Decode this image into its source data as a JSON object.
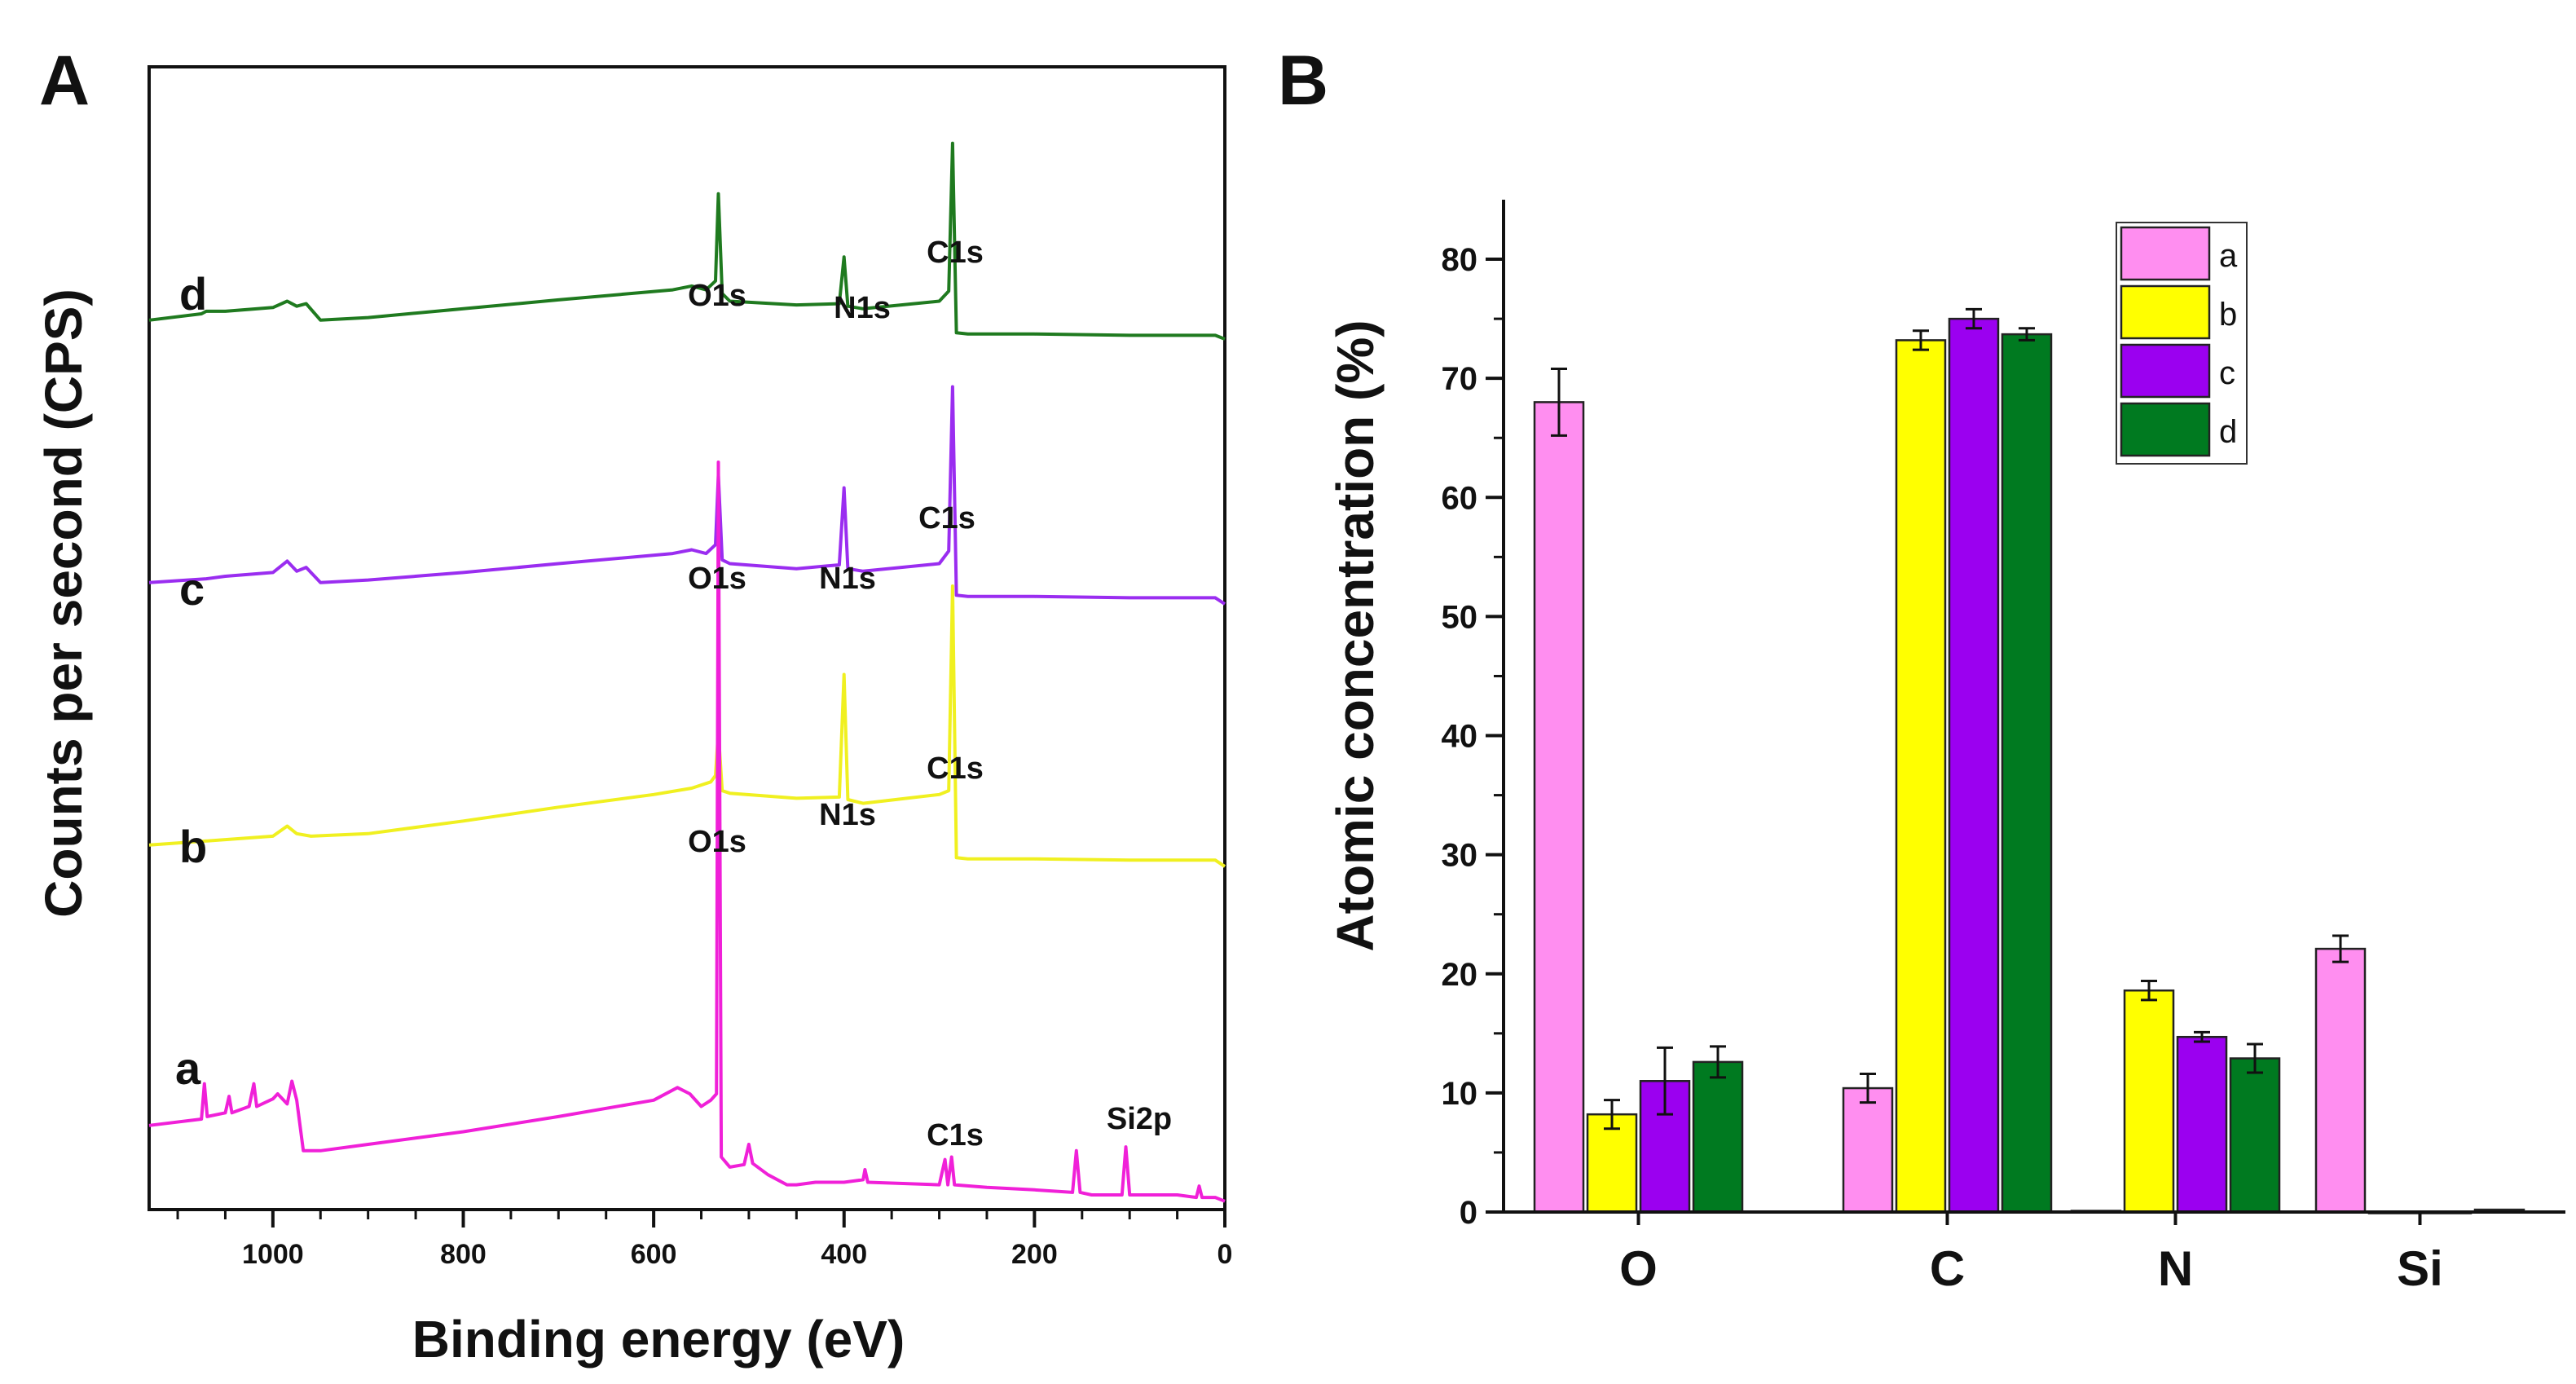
{
  "chart_data": [
    {
      "panel": "A",
      "type": "line",
      "xlabel": "Binding energy (eV)",
      "ylabel": "Counts per second (CPS)",
      "xlim": [
        1130,
        0
      ],
      "x_ticks": [
        1000,
        800,
        600,
        400,
        200,
        0
      ],
      "x_reversed": true,
      "y_ticks_shown": false,
      "series": [
        {
          "name": "d",
          "color": "#1f7a1f",
          "offset": 3,
          "points": [
            [
              1130,
              0.55
            ],
            [
              1075,
              0.6
            ],
            [
              1070,
              0.62
            ],
            [
              1050,
              0.62
            ],
            [
              1000,
              0.65
            ],
            [
              985,
              0.7
            ],
            [
              975,
              0.66
            ],
            [
              965,
              0.68
            ],
            [
              950,
              0.55
            ],
            [
              900,
              0.57
            ],
            [
              800,
              0.64
            ],
            [
              700,
              0.71
            ],
            [
              580,
              0.79
            ],
            [
              560,
              0.82
            ],
            [
              545,
              0.79
            ],
            [
              535,
              0.86
            ],
            [
              532,
              1.55
            ],
            [
              528,
              0.76
            ],
            [
              520,
              0.7
            ],
            [
              450,
              0.67
            ],
            [
              405,
              0.68
            ],
            [
              400,
              1.05
            ],
            [
              396,
              0.66
            ],
            [
              380,
              0.64
            ],
            [
              300,
              0.7
            ],
            [
              290,
              0.78
            ],
            [
              286,
              1.95
            ],
            [
              282,
              0.45
            ],
            [
              270,
              0.44
            ],
            [
              200,
              0.44
            ],
            [
              100,
              0.43
            ],
            [
              50,
              0.43
            ],
            [
              10,
              0.43
            ],
            [
              0,
              0.4
            ]
          ]
        },
        {
          "name": "c",
          "color": "#9a2df0",
          "offset": 2,
          "points": [
            [
              1130,
              0.55
            ],
            [
              1070,
              0.58
            ],
            [
              1050,
              0.6
            ],
            [
              1000,
              0.63
            ],
            [
              985,
              0.72
            ],
            [
              975,
              0.64
            ],
            [
              965,
              0.67
            ],
            [
              950,
              0.55
            ],
            [
              900,
              0.57
            ],
            [
              800,
              0.63
            ],
            [
              700,
              0.7
            ],
            [
              580,
              0.78
            ],
            [
              560,
              0.81
            ],
            [
              545,
              0.78
            ],
            [
              535,
              0.85
            ],
            [
              532,
              1.4
            ],
            [
              528,
              0.73
            ],
            [
              520,
              0.7
            ],
            [
              450,
              0.66
            ],
            [
              405,
              0.69
            ],
            [
              400,
              1.3
            ],
            [
              396,
              0.66
            ],
            [
              380,
              0.64
            ],
            [
              300,
              0.7
            ],
            [
              290,
              0.8
            ],
            [
              286,
              2.1
            ],
            [
              282,
              0.45
            ],
            [
              270,
              0.44
            ],
            [
              200,
              0.44
            ],
            [
              100,
              0.43
            ],
            [
              50,
              0.43
            ],
            [
              10,
              0.43
            ],
            [
              0,
              0.38
            ]
          ]
        },
        {
          "name": "b",
          "color": "#f0f020",
          "offset": 1,
          "points": [
            [
              1130,
              0.55
            ],
            [
              1000,
              0.62
            ],
            [
              985,
              0.7
            ],
            [
              975,
              0.64
            ],
            [
              960,
              0.62
            ],
            [
              900,
              0.64
            ],
            [
              800,
              0.74
            ],
            [
              700,
              0.85
            ],
            [
              600,
              0.95
            ],
            [
              560,
              1.0
            ],
            [
              540,
              1.05
            ],
            [
              535,
              1.1
            ],
            [
              532,
              1.45
            ],
            [
              528,
              0.98
            ],
            [
              520,
              0.96
            ],
            [
              450,
              0.92
            ],
            [
              405,
              0.93
            ],
            [
              400,
              1.9
            ],
            [
              396,
              0.91
            ],
            [
              380,
              0.88
            ],
            [
              300,
              0.95
            ],
            [
              290,
              0.98
            ],
            [
              286,
              2.6
            ],
            [
              282,
              0.45
            ],
            [
              270,
              0.44
            ],
            [
              200,
              0.44
            ],
            [
              100,
              0.43
            ],
            [
              50,
              0.43
            ],
            [
              10,
              0.43
            ],
            [
              0,
              0.38
            ]
          ]
        },
        {
          "name": "a",
          "color": "#f020d8",
          "offset": 0,
          "points": [
            [
              1130,
              0.15
            ],
            [
              1075,
              0.2
            ],
            [
              1072,
              0.48
            ],
            [
              1069,
              0.22
            ],
            [
              1050,
              0.25
            ],
            [
              1046,
              0.38
            ],
            [
              1043,
              0.25
            ],
            [
              1025,
              0.3
            ],
            [
              1020,
              0.48
            ],
            [
              1017,
              0.3
            ],
            [
              1000,
              0.36
            ],
            [
              995,
              0.4
            ],
            [
              985,
              0.32
            ],
            [
              980,
              0.5
            ],
            [
              975,
              0.35
            ],
            [
              968,
              -0.05
            ],
            [
              950,
              -0.05
            ],
            [
              900,
              0.0
            ],
            [
              800,
              0.1
            ],
            [
              700,
              0.22
            ],
            [
              600,
              0.35
            ],
            [
              575,
              0.45
            ],
            [
              562,
              0.4
            ],
            [
              550,
              0.3
            ],
            [
              540,
              0.35
            ],
            [
              534,
              0.4
            ],
            [
              532,
              5.4
            ],
            [
              529,
              -0.1
            ],
            [
              520,
              -0.18
            ],
            [
              505,
              -0.16
            ],
            [
              500,
              0.0
            ],
            [
              496,
              -0.15
            ],
            [
              480,
              -0.24
            ],
            [
              460,
              -0.32
            ],
            [
              450,
              -0.32
            ],
            [
              430,
              -0.3
            ],
            [
              400,
              -0.3
            ],
            [
              380,
              -0.28
            ],
            [
              378,
              -0.2
            ],
            [
              375,
              -0.3
            ],
            [
              300,
              -0.32
            ],
            [
              294,
              -0.12
            ],
            [
              291,
              -0.32
            ],
            [
              287,
              -0.1
            ],
            [
              284,
              -0.32
            ],
            [
              250,
              -0.34
            ],
            [
              200,
              -0.36
            ],
            [
              160,
              -0.38
            ],
            [
              156,
              -0.05
            ],
            [
              152,
              -0.38
            ],
            [
              140,
              -0.4
            ],
            [
              108,
              -0.4
            ],
            [
              104,
              -0.02
            ],
            [
              100,
              -0.4
            ],
            [
              50,
              -0.4
            ],
            [
              30,
              -0.42
            ],
            [
              27,
              -0.33
            ],
            [
              24,
              -0.42
            ],
            [
              10,
              -0.42
            ],
            [
              0,
              -0.45
            ]
          ]
        }
      ],
      "annotations": [
        {
          "text": "O1s",
          "curve": "d"
        },
        {
          "text": "N1s",
          "curve": "d"
        },
        {
          "text": "C1s",
          "curve": "d"
        },
        {
          "text": "O1s",
          "curve": "c"
        },
        {
          "text": "N1s",
          "curve": "c"
        },
        {
          "text": "C1s",
          "curve": "c"
        },
        {
          "text": "O1s",
          "curve": "b"
        },
        {
          "text": "N1s",
          "curve": "b"
        },
        {
          "text": "C1s",
          "curve": "b"
        },
        {
          "text": "C1s",
          "curve": "a"
        },
        {
          "text": "Si2p",
          "curve": "a"
        }
      ]
    },
    {
      "panel": "B",
      "type": "bar",
      "ylabel": "Atomic concentration (%)",
      "xlabel": "",
      "ylim": [
        0,
        85
      ],
      "y_ticks": [
        0,
        10,
        20,
        30,
        40,
        50,
        60,
        70,
        80
      ],
      "categories": [
        "O",
        "C",
        "N",
        "Si"
      ],
      "legend_position": "top-right",
      "series": [
        {
          "name": "a",
          "color": "#ff8ef0",
          "values": [
            68.0,
            10.4,
            0.1,
            22.1
          ],
          "errors": [
            2.8,
            1.2,
            0,
            1.1
          ]
        },
        {
          "name": "b",
          "color": "#ffff00",
          "values": [
            8.2,
            73.2,
            18.6,
            0.0
          ],
          "errors": [
            1.2,
            0.8,
            0.8,
            0
          ]
        },
        {
          "name": "c",
          "color": "#9b00f0",
          "values": [
            11.0,
            75.0,
            14.7,
            0.0
          ],
          "errors": [
            2.8,
            0.8,
            0.4,
            0
          ]
        },
        {
          "name": "d",
          "color": "#007a20",
          "values": [
            12.6,
            73.7,
            12.9,
            0.2
          ],
          "errors": [
            1.3,
            0.5,
            1.2,
            0
          ]
        }
      ]
    }
  ],
  "labels": {
    "panel_a": "A",
    "panel_b": "B"
  }
}
